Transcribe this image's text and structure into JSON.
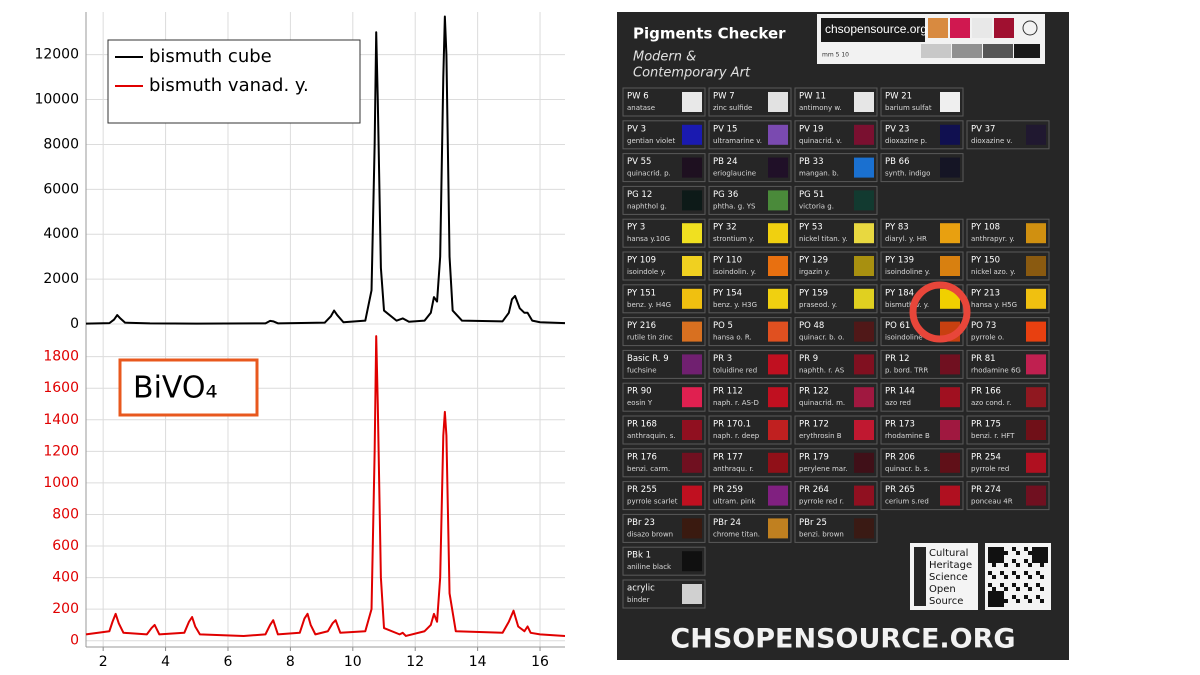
{
  "chart_data": [
    {
      "type": "line",
      "xlim": [
        1.45,
        16.8
      ],
      "ylim": [
        -400,
        13900
      ],
      "yticks": [
        0,
        2000,
        4000,
        6000,
        8000,
        10000,
        12000
      ],
      "grid": true,
      "legend": "upper left",
      "x": [
        1.45,
        2.2,
        2.35,
        2.45,
        2.55,
        2.7,
        3.5,
        5,
        7.2,
        7.35,
        7.45,
        7.6,
        9.1,
        9.3,
        9.4,
        9.5,
        9.7,
        10.4,
        10.6,
        10.7,
        10.75,
        10.8,
        10.9,
        11.0,
        11.4,
        11.6,
        11.8,
        12.3,
        12.5,
        12.6,
        12.7,
        12.8,
        12.9,
        12.95,
        13.0,
        13.1,
        13.2,
        13.5,
        14.8,
        15.0,
        15.1,
        15.2,
        15.35,
        15.5,
        15.6,
        15.75,
        16.0,
        16.8
      ],
      "series": [
        {
          "name": "bismuth cube",
          "color": "#000000",
          "values": [
            20,
            40,
            200,
            400,
            250,
            60,
            30,
            20,
            30,
            140,
            120,
            30,
            60,
            350,
            600,
            400,
            80,
            150,
            1500,
            8000,
            13000,
            10000,
            2500,
            600,
            150,
            250,
            100,
            150,
            500,
            1200,
            1000,
            3000,
            11000,
            13700,
            12000,
            3000,
            600,
            150,
            120,
            500,
            1100,
            1250,
            700,
            500,
            500,
            150,
            80,
            40
          ]
        }
      ]
    },
    {
      "type": "line",
      "xlim": [
        1.45,
        16.8
      ],
      "ylim": [
        -40,
        1950
      ],
      "xticks": [
        2,
        4,
        6,
        8,
        10,
        12,
        14,
        16
      ],
      "yticks": [
        0,
        200,
        400,
        600,
        800,
        1000,
        1200,
        1400,
        1600,
        1800
      ],
      "grid": true,
      "annotation": "BiVO₄",
      "x": [
        1.45,
        2.2,
        2.3,
        2.4,
        2.5,
        2.65,
        3.4,
        3.55,
        3.65,
        3.8,
        4.6,
        4.75,
        4.85,
        4.95,
        5.1,
        6.5,
        7.2,
        7.35,
        7.45,
        7.6,
        8.3,
        8.45,
        8.55,
        8.65,
        8.8,
        9.2,
        9.35,
        9.45,
        9.6,
        10.4,
        10.6,
        10.7,
        10.75,
        10.8,
        10.9,
        11.0,
        11.5,
        11.6,
        11.7,
        12.3,
        12.5,
        12.6,
        12.7,
        12.8,
        12.9,
        12.95,
        13.0,
        13.1,
        13.3,
        14.8,
        15.0,
        15.15,
        15.3,
        15.5,
        15.6,
        15.7,
        16.0,
        16.8
      ],
      "series": [
        {
          "name": "bismuth vanad. y.",
          "color": "#e00000",
          "values": [
            40,
            60,
            120,
            170,
            110,
            50,
            40,
            80,
            100,
            40,
            50,
            120,
            150,
            90,
            40,
            30,
            40,
            100,
            130,
            40,
            50,
            140,
            170,
            100,
            40,
            60,
            110,
            130,
            50,
            60,
            200,
            1200,
            1930,
            1500,
            400,
            80,
            40,
            50,
            30,
            60,
            100,
            170,
            120,
            400,
            1300,
            1450,
            1300,
            300,
            60,
            50,
            120,
            190,
            90,
            60,
            90,
            50,
            40,
            30
          ]
        }
      ]
    }
  ],
  "card": {
    "title": "Pigments Checker",
    "subtitle": [
      "Modern &",
      "Contemporary Art"
    ],
    "logo_text": "chsopensource.org",
    "scale_label": "mm 5 10",
    "rows": [
      [
        {
          "code": "PW 6",
          "name": "anatase",
          "color": "#e8e8e8"
        },
        {
          "code": "PW 7",
          "name": "zinc sulfide",
          "color": "#e2e2e2"
        },
        {
          "code": "PW 11",
          "name": "antimony w.",
          "color": "#e6e6e6"
        },
        {
          "code": "PW 21",
          "name": "barium sulfat",
          "color": "#efefef"
        }
      ],
      [
        {
          "code": "PV 3",
          "name": "gentian violet",
          "color": "#1a1ab0"
        },
        {
          "code": "PV 15",
          "name": "ultramarine v.",
          "color": "#7a4ab0"
        },
        {
          "code": "PV 19",
          "name": "quinacrid. v.",
          "color": "#7a1030"
        },
        {
          "code": "PV 23",
          "name": "dioxazine p.",
          "color": "#101050"
        },
        {
          "code": "PV 37",
          "name": "dioxazine v.",
          "color": "#201830"
        }
      ],
      [
        {
          "code": "PV 55",
          "name": "quinacrid. p.",
          "color": "#1e1020"
        },
        {
          "code": "PB 24",
          "name": "erioglaucine",
          "color": "#201028"
        },
        {
          "code": "PB 33",
          "name": "mangan. b.",
          "color": "#1a70d0"
        },
        {
          "code": "PB 66",
          "name": "synth. indigo",
          "color": "#151525"
        }
      ],
      [
        {
          "code": "PG 12",
          "name": "naphthol g.",
          "color": "#0d1a18"
        },
        {
          "code": "PG 36",
          "name": "phtha. g. YS",
          "color": "#4a8a3a"
        },
        {
          "code": "PG 51",
          "name": "victoria g.",
          "color": "#123a30"
        }
      ],
      [
        {
          "code": "PY 3",
          "name": "hansa y.10G",
          "color": "#f0e020"
        },
        {
          "code": "PY 32",
          "name": "strontium y.",
          "color": "#f0d010"
        },
        {
          "code": "PY 53",
          "name": "nickel titan. y.",
          "color": "#e8d840"
        },
        {
          "code": "PY 83",
          "name": "diaryl. y. HR",
          "color": "#e8a010"
        },
        {
          "code": "PY 108",
          "name": "anthrapyr. y.",
          "color": "#d09010"
        }
      ],
      [
        {
          "code": "PY 109",
          "name": "isoindole y.",
          "color": "#f0d020"
        },
        {
          "code": "PY 110",
          "name": "isoindolin. y.",
          "color": "#e87010"
        },
        {
          "code": "PY 129",
          "name": "irgazin y.",
          "color": "#a89010"
        },
        {
          "code": "PY 139",
          "name": "isoindoline y.",
          "color": "#d88010"
        },
        {
          "code": "PY 150",
          "name": "nickel azo. y.",
          "color": "#8a5a10"
        }
      ],
      [
        {
          "code": "PY 151",
          "name": "benz. y. H4G",
          "color": "#f0c010"
        },
        {
          "code": "PY 154",
          "name": "benz. y. H3G",
          "color": "#f0d010"
        },
        {
          "code": "PY 159",
          "name": "praseod. y.",
          "color": "#e0d020"
        },
        {
          "code": "PY 184",
          "name": "bismuth v. y.",
          "color": "#f0d000"
        },
        {
          "code": "PY 213",
          "name": "hansa y. H5G",
          "color": "#f0c010"
        }
      ],
      [
        {
          "code": "PY 216",
          "name": "rutile tin zinc",
          "color": "#d87020"
        },
        {
          "code": "PO 5",
          "name": "hansa o. R.",
          "color": "#e05020"
        },
        {
          "code": "PO 48",
          "name": "quinacr. b. o.",
          "color": "#501818"
        },
        {
          "code": "PO 61",
          "name": "isoindoline o.",
          "color": "#c84010"
        },
        {
          "code": "PO 73",
          "name": "pyrrole o.",
          "color": "#e84010"
        }
      ],
      [
        {
          "code": "Basic R. 9",
          "name": "fuchsine",
          "color": "#702070"
        },
        {
          "code": "PR 3",
          "name": "toluidine red",
          "color": "#c01020"
        },
        {
          "code": "PR 9",
          "name": "naphth. r. AS",
          "color": "#801020"
        },
        {
          "code": "PR 12",
          "name": "p. bord. TRR",
          "color": "#701020"
        },
        {
          "code": "PR 81",
          "name": "rhodamine 6G",
          "color": "#c02050"
        }
      ],
      [
        {
          "code": "PR 90",
          "name": "eosin Y",
          "color": "#e02050"
        },
        {
          "code": "PR 112",
          "name": "naph. r. AS-D",
          "color": "#c01020"
        },
        {
          "code": "PR 122",
          "name": "quinacrid. m.",
          "color": "#a01840"
        },
        {
          "code": "PR 144",
          "name": "azo red",
          "color": "#a01020"
        },
        {
          "code": "PR 166",
          "name": "azo cond. r.",
          "color": "#901820"
        }
      ],
      [
        {
          "code": "PR 168",
          "name": "anthraquin. s.",
          "color": "#901020"
        },
        {
          "code": "PR 170.1",
          "name": "naph. r. deep",
          "color": "#c02020"
        },
        {
          "code": "PR 172",
          "name": "erythrosin B",
          "color": "#c01830"
        },
        {
          "code": "PR 173",
          "name": "rhodamine B",
          "color": "#a01840"
        },
        {
          "code": "PR 175",
          "name": "benzi. r. HFT",
          "color": "#701018"
        }
      ],
      [
        {
          "code": "PR 176",
          "name": "benzi. carm.",
          "color": "#701020"
        },
        {
          "code": "PR 177",
          "name": "anthraqu. r.",
          "color": "#901018"
        },
        {
          "code": "PR 179",
          "name": "perylene mar.",
          "color": "#401018"
        },
        {
          "code": "PR 206",
          "name": "quinacr. b. s.",
          "color": "#601018"
        },
        {
          "code": "PR 254",
          "name": "pyrrole red",
          "color": "#b01020"
        }
      ],
      [
        {
          "code": "PR 255",
          "name": "pyrrole scarlet",
          "color": "#c01020"
        },
        {
          "code": "PR 259",
          "name": "ultram. pink",
          "color": "#802080"
        },
        {
          "code": "PR 264",
          "name": "pyrrole red r.",
          "color": "#901020"
        },
        {
          "code": "PR 265",
          "name": "cerium s.red",
          "color": "#b01020"
        },
        {
          "code": "PR 274",
          "name": "ponceau 4R",
          "color": "#701020"
        }
      ],
      [
        {
          "code": "PBr 23",
          "name": "disazo brown",
          "color": "#3a1a10"
        },
        {
          "code": "PBr 24",
          "name": "chrome titan.",
          "color": "#c08020"
        },
        {
          "code": "PBr 25",
          "name": "benzi. brown",
          "color": "#3a1a14"
        }
      ],
      [
        {
          "code": "PBk 1",
          "name": "aniline black",
          "color": "#101010"
        }
      ],
      [
        {
          "code": "acrylic",
          "name": "binder",
          "color": "#d0d0d0"
        }
      ]
    ],
    "brand": [
      "Cultural",
      "Heritage",
      "Science",
      "Open",
      "Source"
    ],
    "footer": "CHSOPENSOURCE.ORG"
  }
}
